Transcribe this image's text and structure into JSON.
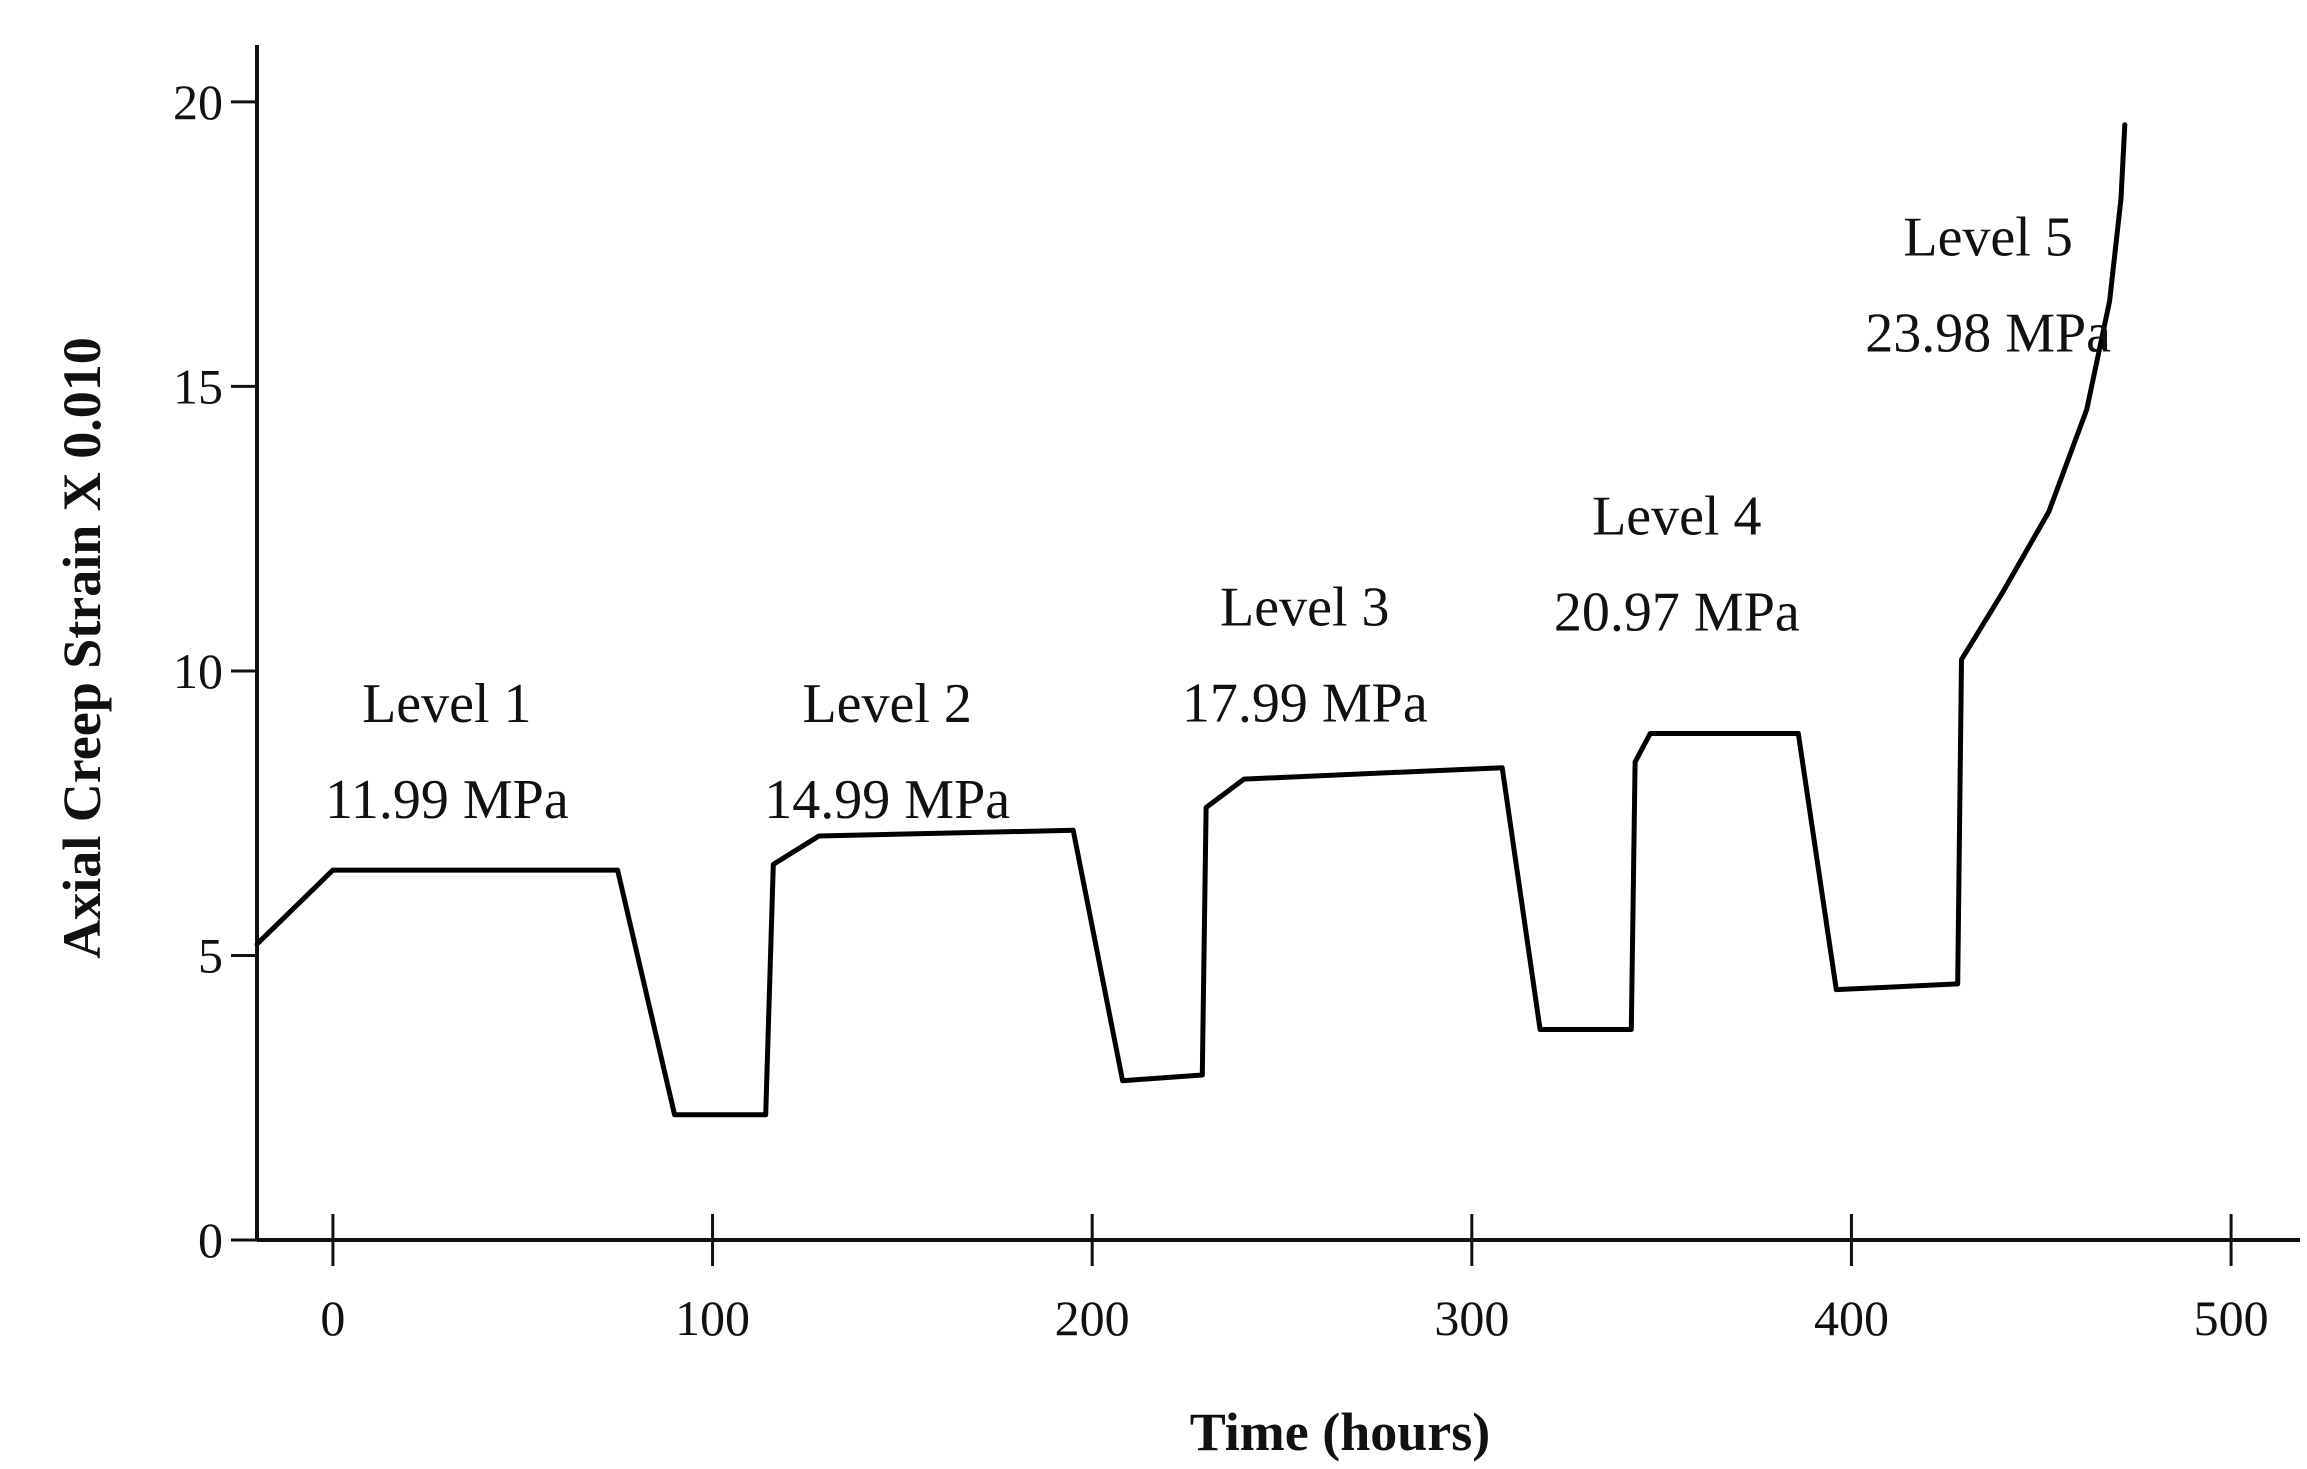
{
  "chart_data": {
    "type": "line",
    "xlabel": "Time (hours)",
    "ylabel": "Axial Creep Strain X 0.010",
    "xlim": [
      -20,
      520
    ],
    "ylim": [
      0,
      21
    ],
    "x_ticks": [
      0,
      100,
      200,
      300,
      400,
      500
    ],
    "y_ticks": [
      0,
      5,
      10,
      15,
      20
    ],
    "grid": false,
    "legend": "none",
    "series": [
      {
        "x": [
          -20,
          0,
          75,
          90,
          114,
          116,
          128,
          195,
          208,
          229,
          230,
          240,
          308,
          318,
          342,
          343,
          347,
          386,
          396,
          428,
          429,
          440,
          452,
          462,
          468,
          471,
          472
        ],
        "y": [
          5.2,
          6.5,
          6.5,
          2.2,
          2.2,
          6.6,
          7.1,
          7.2,
          2.8,
          2.9,
          7.6,
          8.1,
          8.3,
          3.7,
          3.7,
          8.4,
          8.9,
          8.9,
          4.4,
          4.5,
          10.2,
          11.4,
          12.8,
          14.6,
          16.5,
          18.3,
          19.6
        ]
      }
    ],
    "annotations": [
      {
        "lines": [
          "Level 1",
          "11.99 MPa"
        ],
        "x": 30,
        "y": 9.1
      },
      {
        "lines": [
          "Level 2",
          "14.99 MPa"
        ],
        "x": 146,
        "y": 9.1
      },
      {
        "lines": [
          "Level 3",
          "17.99 MPa"
        ],
        "x": 256,
        "y": 10.8
      },
      {
        "lines": [
          "Level 4",
          "20.97 MPa"
        ],
        "x": 354,
        "y": 12.4
      },
      {
        "lines": [
          "Level 5",
          "23.98 MPa"
        ],
        "x": 436,
        "y": 17.3
      }
    ]
  }
}
